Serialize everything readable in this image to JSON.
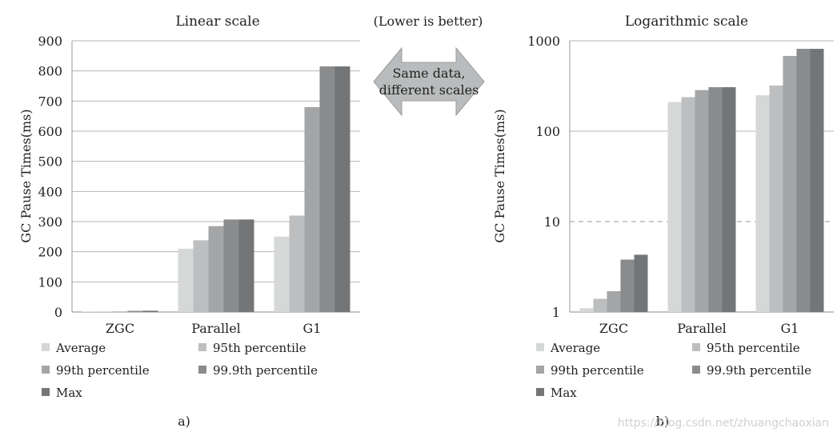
{
  "arrow": {
    "header": "(Lower is better)",
    "line1": "Same data,",
    "line2": "different scales"
  },
  "watermark": "https://blog.csdn.net/zhuangchaoxian",
  "chart_data": [
    {
      "type": "bar",
      "title": "Linear scale",
      "ylabel": "GC Pause Times(ms)",
      "yscale": "linear",
      "ylim": [
        0,
        900
      ],
      "yticks": [
        "0",
        "100",
        "200",
        "300",
        "400",
        "500",
        "600",
        "700",
        "800",
        "900"
      ],
      "grid": true,
      "panel_label": "a)",
      "categories": [
        "ZGC",
        "Parallel",
        "G1"
      ],
      "series": [
        {
          "name": "Average",
          "color": "#d6d8d8",
          "values": [
            1.1,
            210,
            250
          ]
        },
        {
          "name": "95th percentile",
          "color": "#bcbebf",
          "values": [
            1.4,
            238,
            320
          ]
        },
        {
          "name": "99th percentile",
          "color": "#a3a5a7",
          "values": [
            1.7,
            285,
            680
          ]
        },
        {
          "name": "99.9th percentile",
          "color": "#898b8d",
          "values": [
            3.8,
            307,
            815
          ]
        },
        {
          "name": "Max",
          "color": "#737577",
          "values": [
            4.3,
            307,
            815
          ]
        }
      ]
    },
    {
      "type": "bar",
      "title": "Logarithmic scale",
      "ylabel": "GC Pause Times(ms)",
      "yscale": "log",
      "ylim": [
        1,
        1000
      ],
      "yticks": [
        "1",
        "10",
        "100",
        "1000"
      ],
      "grid": true,
      "panel_label": "b)",
      "categories": [
        "ZGC",
        "Parallel",
        "G1"
      ],
      "series": [
        {
          "name": "Average",
          "color": "#d6d8d8",
          "values": [
            1.1,
            210,
            250
          ]
        },
        {
          "name": "95th percentile",
          "color": "#bcbebf",
          "values": [
            1.4,
            238,
            320
          ]
        },
        {
          "name": "99th percentile",
          "color": "#a3a5a7",
          "values": [
            1.7,
            285,
            680
          ]
        },
        {
          "name": "99.9th percentile",
          "color": "#898b8d",
          "values": [
            3.8,
            307,
            815
          ]
        },
        {
          "name": "Max",
          "color": "#737577",
          "values": [
            4.3,
            307,
            815
          ]
        }
      ]
    }
  ]
}
